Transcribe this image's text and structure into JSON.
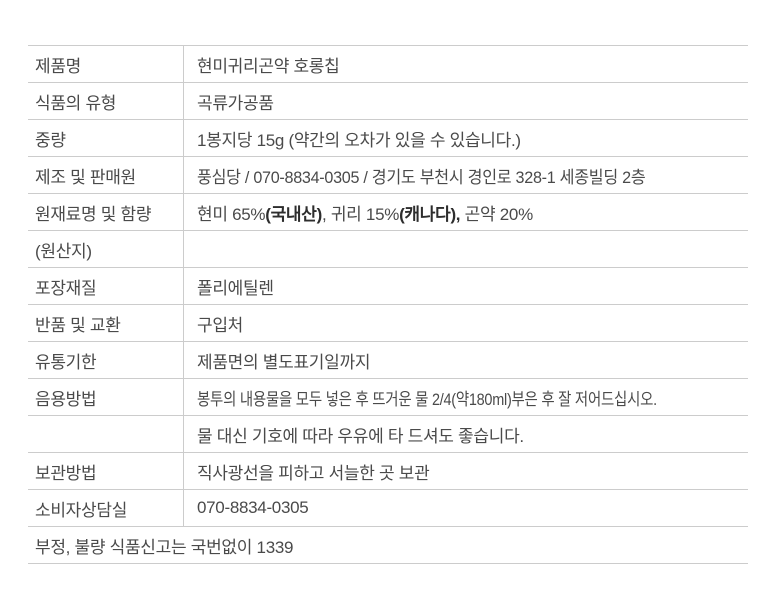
{
  "colors": {
    "line": "#cccccc",
    "text": "#4a4a4a",
    "bold": "#2d2d2d",
    "background": "#ffffff"
  },
  "table": {
    "rows": [
      {
        "label": "제품명",
        "value": "현미귀리곤약 호롱칩"
      },
      {
        "label": "식품의 유형",
        "value": "곡류가공품"
      },
      {
        "label": "중량",
        "value": "1봉지당 15g (약간의 오차가 있을 수 있습니다.)"
      },
      {
        "label": "제조 및 판매원",
        "value": "풍심당 / 070-8834-0305 / 경기도 부천시 경인로 328-1 세종빌딩 2층",
        "scale_x": 0.95
      },
      {
        "label": "원재료명 및 함량",
        "segments": [
          {
            "text": "현미 65%",
            "bold": false
          },
          {
            "text": "(국내산)",
            "bold": true
          },
          {
            "text": ", 귀리 15%",
            "bold": false
          },
          {
            "text": "(캐나다),",
            "bold": true
          },
          {
            "text": " 곤약 20%",
            "bold": false
          }
        ]
      },
      {
        "label": "(원산지)",
        "value": ""
      },
      {
        "label": "포장재질",
        "value": "폴리에틸렌"
      },
      {
        "label": "반품 및 교환",
        "value": "구입처"
      },
      {
        "label": "유통기한",
        "value": "제품면의 별도표기일까지"
      },
      {
        "label": "음용방법",
        "value": "봉투의 내용물을 모두 넣은 후 뜨거운 물 2/4(약180ml)부은 후 잘 저어드십시오.",
        "scale_x": 0.85
      },
      {
        "label": "",
        "value": "물 대신 기호에 따라 우유에 타 드셔도 좋습니다."
      },
      {
        "label": "보관방법",
        "value": "직사광선을 피하고 서늘한 곳 보관"
      },
      {
        "label": "소비자상담실",
        "value": "070-8834-0305"
      },
      {
        "label": "",
        "value": "부정, 불량 식품신고는 국번없이 1339",
        "full_width": true
      }
    ]
  }
}
